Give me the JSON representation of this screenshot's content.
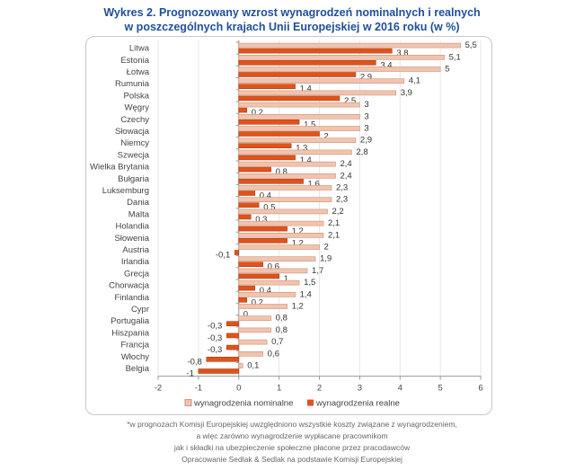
{
  "title_line1": "Wykres 2. Prognozowany wzrost wynagrodzeń nominalnych i realnych",
  "title_line2": "w poszczególnych krajach Unii Europejskiej w 2016 roku (w %)",
  "footnotes": [
    "*w prognozach Komisji Europejskiej uwzględniono wszystkie koszty związane z wynagrodzeniem,",
    "a więc zarówno wynagrodzenie wypłacane pracownikom",
    "jak i składki na ubezpieczenie społeczne płacone przez pracodawców",
    "Opracowanie Sedlak & Sedlak na podstawie Komisji Europejskiej"
  ],
  "chart_data": {
    "type": "bar",
    "orientation": "horizontal",
    "title": "Wykres 2. Prognozowany wzrost wynagrodzeń nominalnych i realnych w poszczególnych krajach Unii Europejskiej w 2016 roku (w %)",
    "categories": [
      "Litwa",
      "Estonia",
      "Łotwa",
      "Rumunia",
      "Polska",
      "Węgry",
      "Czechy",
      "Słowacja",
      "Niemcy",
      "Szwecja",
      "Wielka Brytania",
      "Bułgaria",
      "Luksemburg",
      "Dania",
      "Malta",
      "Holandia",
      "Słowenia",
      "Austria",
      "Irlandia",
      "Grecja",
      "Chorwacja",
      "Finlandia",
      "Cypr",
      "Portugalia",
      "Hiszpania",
      "Francja",
      "Włochy",
      "Belgia"
    ],
    "series": [
      {
        "name": "wynagrodzenia nominalne",
        "color": "#f2c4ae",
        "values": [
          5.5,
          5.1,
          5,
          4.1,
          3.9,
          3,
          3,
          3,
          2.9,
          2.8,
          2.4,
          2.4,
          2.3,
          2.3,
          2.2,
          2.1,
          2.1,
          2,
          1.9,
          1.7,
          1.5,
          1.4,
          1.2,
          0.8,
          0.8,
          0.7,
          0.6,
          0.1
        ]
      },
      {
        "name": "wynagrodzenia realne",
        "color": "#e0531c",
        "values": [
          3.8,
          3.4,
          2.9,
          1.4,
          2.5,
          0.2,
          1.5,
          2,
          1.3,
          1.4,
          0.8,
          1.6,
          0.4,
          0.5,
          0.3,
          1.2,
          1.2,
          -0.1,
          0.6,
          1,
          0.4,
          0.2,
          0,
          -0.3,
          -0.3,
          -0.3,
          -0.8,
          -1
        ]
      }
    ],
    "xlim": [
      -2,
      6
    ],
    "xticks": [
      "-2",
      "-1",
      "0",
      "1",
      "2",
      "3",
      "4",
      "5",
      "6"
    ],
    "xlabel": "",
    "ylabel": "",
    "grid": true,
    "legend": "bottom"
  }
}
